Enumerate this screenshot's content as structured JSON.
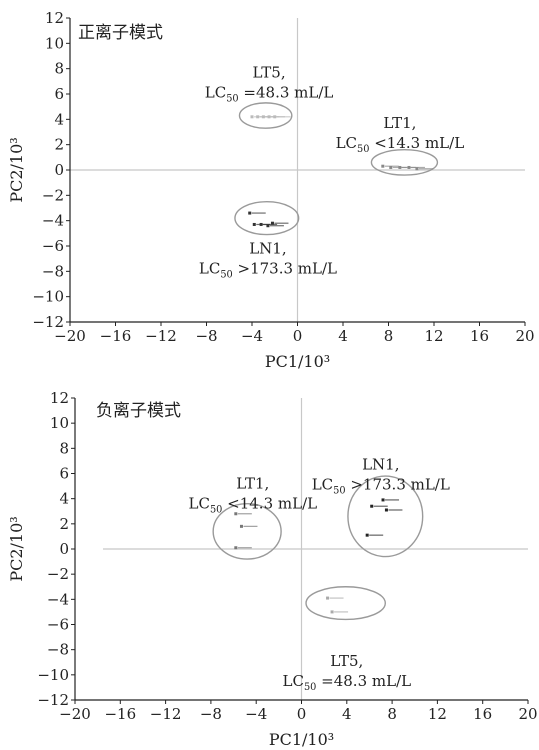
{
  "chart_data": [
    {
      "type": "scatter",
      "mode_label": "正离子模式",
      "xlabel": "PC1/10³",
      "ylabel": "PC2/10³",
      "xlim": [
        -20,
        20
      ],
      "ylim": [
        -12,
        12
      ],
      "xticks": [
        -20,
        -16,
        -12,
        -8,
        -4,
        0,
        4,
        8,
        12,
        16,
        20
      ],
      "yticks": [
        -12,
        -10,
        -8,
        -6,
        -4,
        -2,
        0,
        2,
        4,
        6,
        8,
        10,
        12
      ],
      "series": [
        {
          "name": "LT5",
          "label": [
            "LT5,",
            "LC50 =48.3 mL/L"
          ],
          "color": "#bbbbbb",
          "points": [
            [
              -4,
              4.2
            ],
            [
              -3.5,
              4.2
            ],
            [
              -3,
              4.2
            ],
            [
              -2.5,
              4.2
            ],
            [
              -2,
              4.2
            ]
          ],
          "ellipse": {
            "cx": -2.8,
            "cy": 4.3,
            "rx": 2.3,
            "ry": 1.0
          }
        },
        {
          "name": "LT1",
          "label": [
            "LT1,",
            "LC50 <14.3 mL/L"
          ],
          "color": "#888888",
          "points": [
            [
              7.5,
              0.3
            ],
            [
              8.2,
              0.2
            ],
            [
              9,
              0.2
            ],
            [
              9.8,
              0.2
            ],
            [
              10.5,
              0.1
            ]
          ],
          "ellipse": {
            "cx": 9.4,
            "cy": 0.6,
            "rx": 2.9,
            "ry": 1.0
          }
        },
        {
          "name": "LN1",
          "label": [
            "LN1,",
            "LC50 >173.3 mL/L"
          ],
          "color": "#333333",
          "points": [
            [
              -4.2,
              -3.4
            ],
            [
              -3.8,
              -4.3
            ],
            [
              -3.2,
              -4.3
            ],
            [
              -2.6,
              -4.4
            ],
            [
              -2.2,
              -4.2
            ]
          ],
          "ellipse": {
            "cx": -2.7,
            "cy": -3.8,
            "rx": 2.8,
            "ry": 1.3
          }
        }
      ]
    },
    {
      "type": "scatter",
      "mode_label": "负离子模式",
      "xlabel": "PC1/10³",
      "ylabel": "PC2/10³",
      "xlim": [
        -20,
        20
      ],
      "ylim": [
        -12,
        12
      ],
      "xticks": [
        -20,
        -16,
        -12,
        -8,
        -4,
        0,
        4,
        8,
        12,
        16,
        20
      ],
      "yticks": [
        -12,
        -10,
        -8,
        -6,
        -4,
        -2,
        0,
        2,
        4,
        6,
        8,
        10,
        12
      ],
      "series": [
        {
          "name": "LT1",
          "label": [
            "LT1,",
            "LC50 <14.3 mL/L"
          ],
          "color": "#777777",
          "points": [
            [
              -5.8,
              2.8
            ],
            [
              -5.3,
              1.8
            ],
            [
              -5.8,
              0.1
            ]
          ],
          "ellipse": {
            "cx": -4.8,
            "cy": 1.4,
            "rx": 3.0,
            "ry": 2.2
          }
        },
        {
          "name": "LN1",
          "label": [
            "LN1,",
            "LC50 >173.3 mL/L"
          ],
          "color": "#222222",
          "points": [
            [
              6.2,
              3.4
            ],
            [
              7.2,
              3.9
            ],
            [
              7.5,
              3.1
            ],
            [
              5.8,
              1.1
            ]
          ],
          "ellipse": {
            "cx": 7.4,
            "cy": 2.6,
            "rx": 3.3,
            "ry": 3.2
          }
        },
        {
          "name": "LT5",
          "label": [
            "LT5,",
            "LC50 =48.3 mL/L"
          ],
          "color": "#aaaaaa",
          "points": [
            [
              2.3,
              -3.9
            ],
            [
              2.7,
              -5.0
            ]
          ],
          "ellipse": {
            "cx": 3.9,
            "cy": -4.3,
            "rx": 3.5,
            "ry": 1.3
          }
        }
      ]
    }
  ]
}
